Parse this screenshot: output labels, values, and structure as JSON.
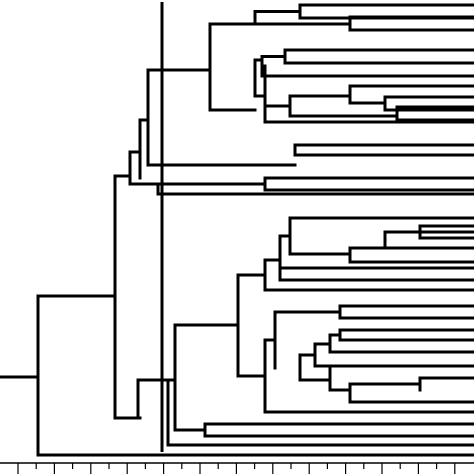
{
  "diagram": {
    "type": "dendrogram",
    "orientation": "left-to-right",
    "leaf_count": 30,
    "has_cutoff_line": true,
    "has_bottom_axis": true,
    "axis_tick_labels": []
  },
  "colors": {
    "line": "#000000",
    "background": "#ffffff"
  }
}
